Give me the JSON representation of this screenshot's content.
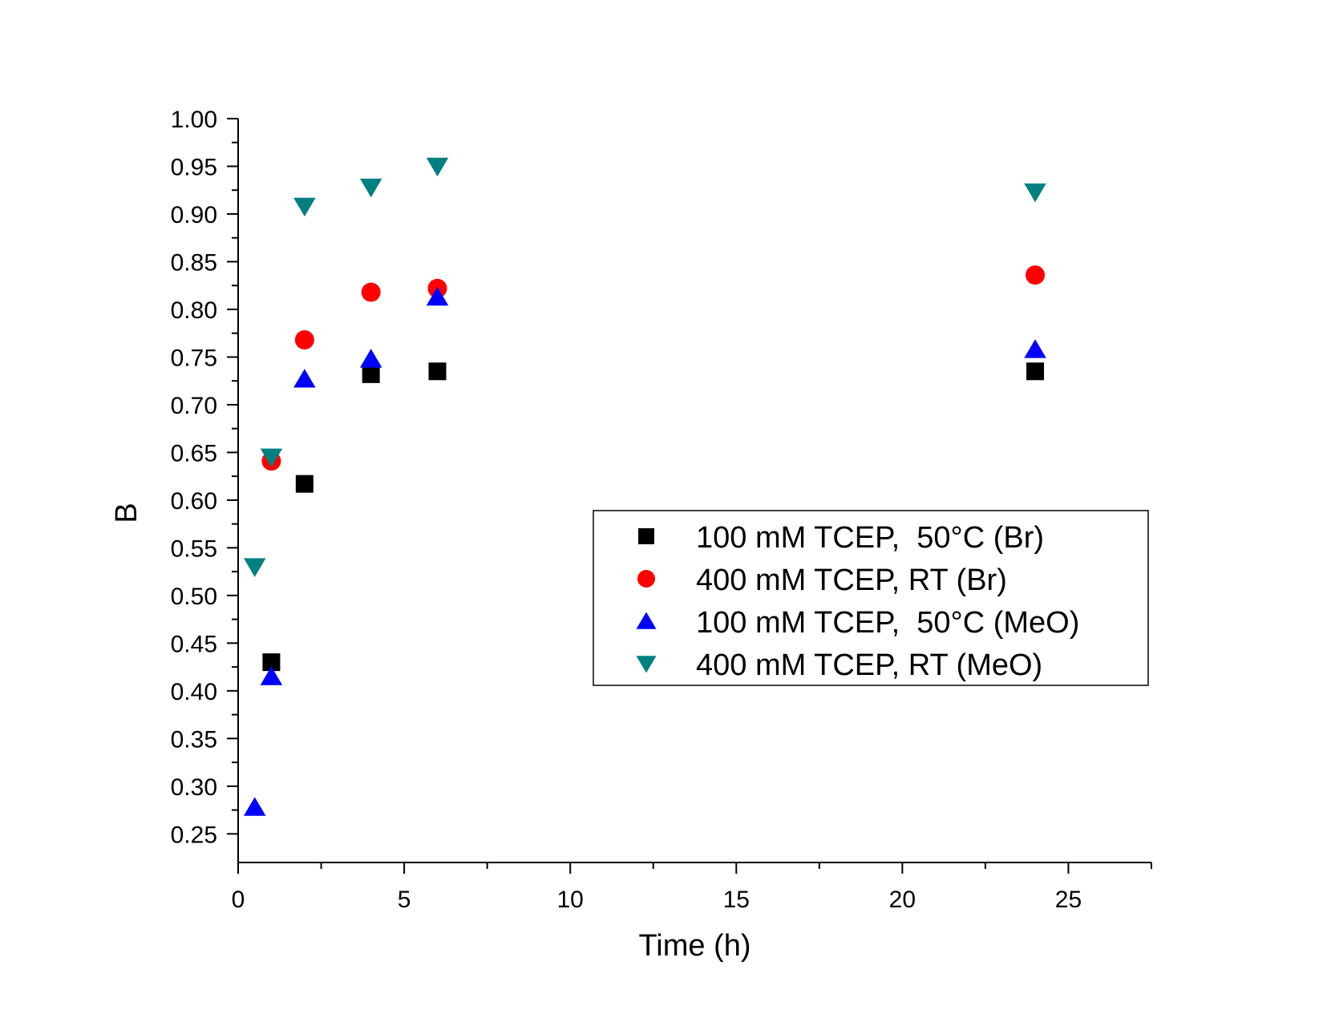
{
  "chart_data": {
    "type": "scatter",
    "title": "",
    "xlabel": "Time (h)",
    "ylabel": "B",
    "xlim": [
      0,
      27.5
    ],
    "ylim": [
      0.22,
      1.0
    ],
    "x_ticks": [
      0,
      5,
      10,
      15,
      20,
      25
    ],
    "y_ticks": [
      0.25,
      0.3,
      0.35,
      0.4,
      0.45,
      0.5,
      0.55,
      0.6,
      0.65,
      0.7,
      0.75,
      0.8,
      0.85,
      0.9,
      0.95,
      1.0
    ],
    "grid": false,
    "legend_position": "center-right",
    "series": [
      {
        "name": "100 mM TCEP,  50°C (Br)",
        "marker": "square",
        "color": "#000000",
        "x": [
          1,
          2,
          4,
          6,
          24
        ],
        "y": [
          0.43,
          0.617,
          0.732,
          0.735,
          0.735
        ]
      },
      {
        "name": "400 mM TCEP, RT (Br)",
        "marker": "circle",
        "color": "#ff0000",
        "x": [
          1,
          2,
          4,
          6,
          24
        ],
        "y": [
          0.641,
          0.768,
          0.818,
          0.822,
          0.836
        ]
      },
      {
        "name": "100 mM TCEP,  50°C (MeO)",
        "marker": "triangle-up",
        "color": "#0000ff",
        "x": [
          0.5,
          1,
          2,
          4,
          6,
          24
        ],
        "y": [
          0.278,
          0.415,
          0.727,
          0.748,
          0.813,
          0.758
        ]
      },
      {
        "name": "400 mM TCEP, RT (MeO)",
        "marker": "triangle-down",
        "color": "#008080",
        "x": [
          0.5,
          1,
          2,
          4,
          6,
          24
        ],
        "y": [
          0.53,
          0.645,
          0.908,
          0.928,
          0.95,
          0.923
        ]
      }
    ]
  }
}
